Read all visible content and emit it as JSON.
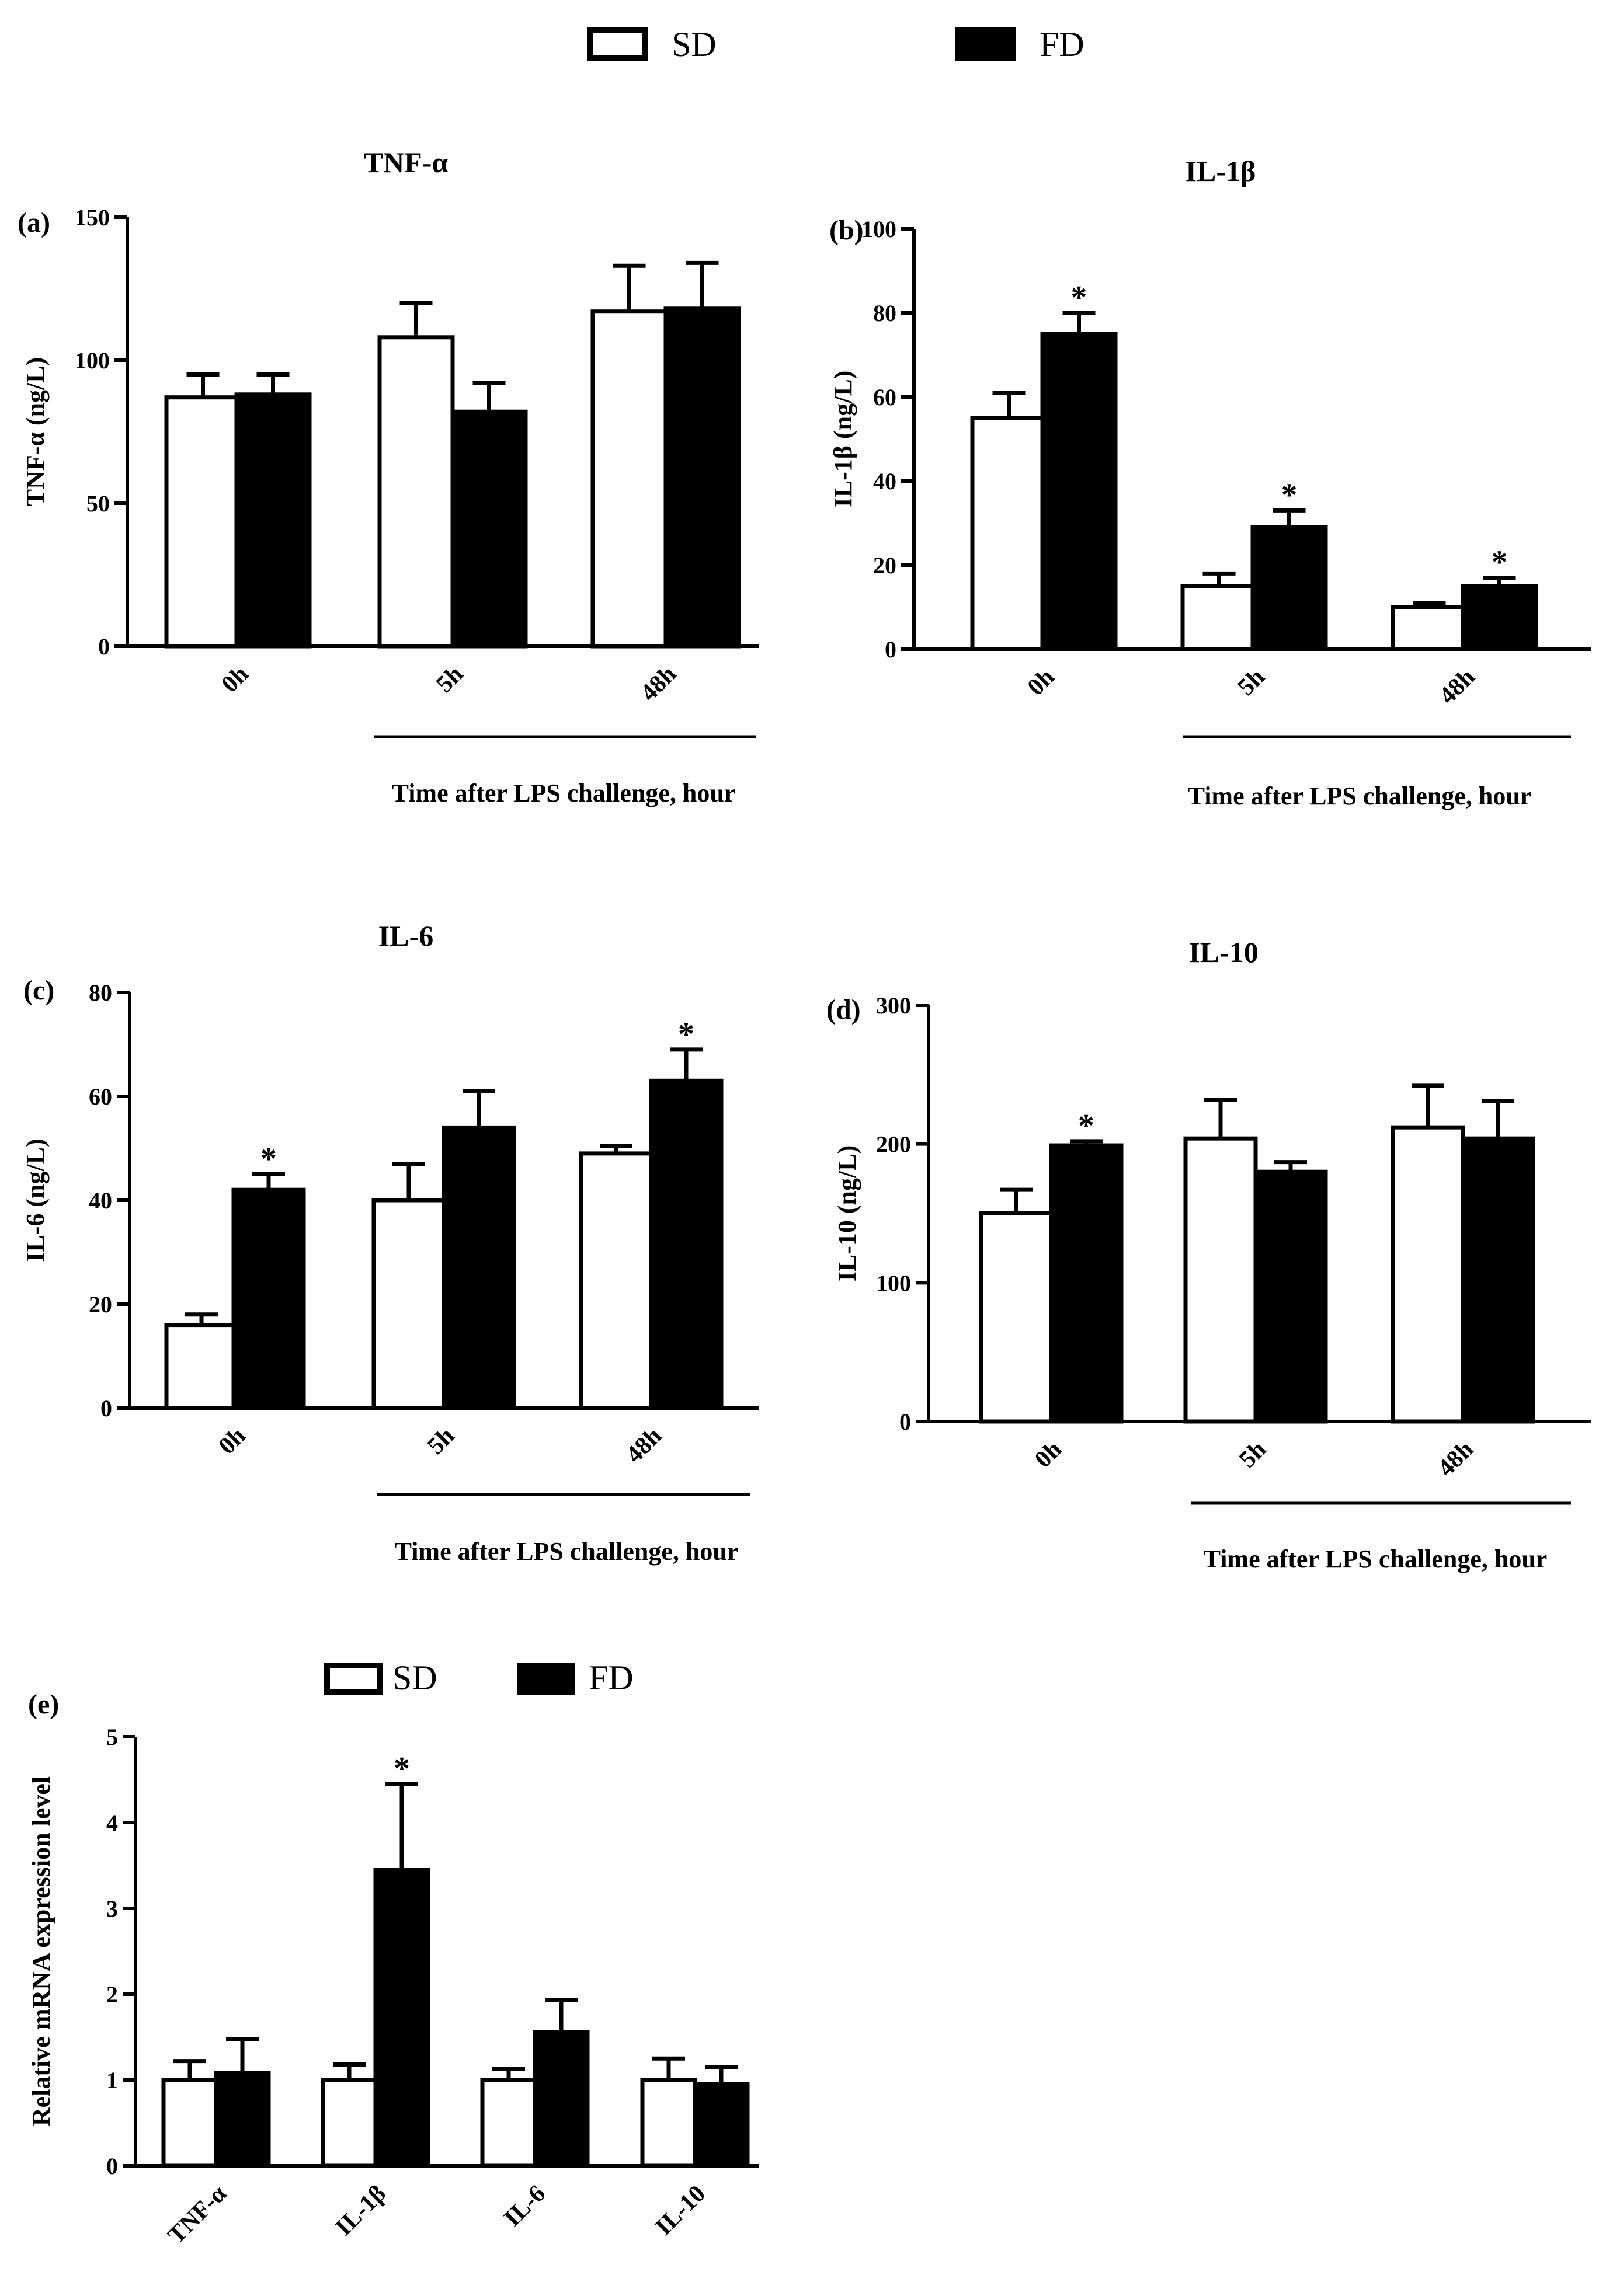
{
  "legend_top": {
    "sd": "SD",
    "fd": "FD"
  },
  "legend_e": {
    "sd": "SD",
    "fd": "FD"
  },
  "colors": {
    "sd": "#ffffff",
    "fd": "#000000",
    "axis": "#000000"
  },
  "chart_data": [
    {
      "id": "a",
      "type": "bar",
      "panel_label": "(a)",
      "title": "TNF-α",
      "ylabel": "TNF-α (ng/L)",
      "xlabel": "Time after LPS challenge, hour",
      "categories": [
        "0h",
        "5h",
        "48h"
      ],
      "ylim": [
        0,
        150
      ],
      "yticks": [
        0,
        50,
        100,
        150
      ],
      "series": [
        {
          "name": "SD",
          "values": [
            87,
            108,
            117
          ],
          "errors": [
            8,
            12,
            16
          ],
          "sig": [
            false,
            false,
            false
          ]
        },
        {
          "name": "FD",
          "values": [
            88,
            82,
            118
          ],
          "errors": [
            7,
            10,
            16
          ],
          "sig": [
            false,
            false,
            false
          ]
        }
      ]
    },
    {
      "id": "b",
      "type": "bar",
      "panel_label": "(b)",
      "title": "IL-1β",
      "ylabel": "IL-1β (ng/L)",
      "xlabel": "Time after LPS challenge, hour",
      "categories": [
        "0h",
        "5h",
        "48h"
      ],
      "ylim": [
        0,
        100
      ],
      "yticks": [
        0,
        20,
        40,
        60,
        80,
        100
      ],
      "series": [
        {
          "name": "SD",
          "values": [
            55,
            15,
            10
          ],
          "errors": [
            6,
            3,
            1
          ],
          "sig": [
            false,
            false,
            false
          ]
        },
        {
          "name": "FD",
          "values": [
            75,
            29,
            15
          ],
          "errors": [
            5,
            4,
            2
          ],
          "sig": [
            true,
            true,
            true
          ]
        }
      ]
    },
    {
      "id": "c",
      "type": "bar",
      "panel_label": "(c)",
      "title": "IL-6",
      "ylabel": "IL-6 (ng/L)",
      "xlabel": "Time after LPS challenge, hour",
      "categories": [
        "0h",
        "5h",
        "48h"
      ],
      "ylim": [
        0,
        80
      ],
      "yticks": [
        0,
        20,
        40,
        60,
        80
      ],
      "series": [
        {
          "name": "SD",
          "values": [
            16,
            40,
            49
          ],
          "errors": [
            2,
            7,
            1.5
          ],
          "sig": [
            false,
            false,
            false
          ]
        },
        {
          "name": "FD",
          "values": [
            42,
            54,
            63
          ],
          "errors": [
            3,
            7,
            6
          ],
          "sig": [
            true,
            false,
            true
          ]
        }
      ]
    },
    {
      "id": "d",
      "type": "bar",
      "panel_label": "(d)",
      "title": "IL-10",
      "ylabel": "IL-10 (ng/L)",
      "xlabel": "Time after LPS challenge, hour",
      "categories": [
        "0h",
        "5h",
        "48h"
      ],
      "ylim": [
        0,
        300
      ],
      "yticks": [
        0,
        100,
        200,
        300
      ],
      "series": [
        {
          "name": "SD",
          "values": [
            150,
            204,
            212
          ],
          "errors": [
            17,
            28,
            30
          ],
          "sig": [
            false,
            false,
            false
          ]
        },
        {
          "name": "FD",
          "values": [
            199,
            180,
            204
          ],
          "errors": [
            3,
            7,
            27
          ],
          "sig": [
            true,
            false,
            false
          ]
        }
      ]
    },
    {
      "id": "e",
      "type": "bar",
      "panel_label": "(e)",
      "title": "",
      "ylabel": "Relative mRNA expression level",
      "xlabel": "",
      "categories": [
        "TNF-α",
        "IL-1β",
        "IL-6",
        "IL-10"
      ],
      "ylim": [
        0,
        5
      ],
      "yticks": [
        0,
        1,
        2,
        3,
        4,
        5
      ],
      "series": [
        {
          "name": "SD",
          "values": [
            1.0,
            1.0,
            1.0,
            1.0
          ],
          "errors": [
            0.22,
            0.18,
            0.13,
            0.25
          ],
          "sig": [
            false,
            false,
            false,
            false
          ]
        },
        {
          "name": "FD",
          "values": [
            1.08,
            3.45,
            1.56,
            0.95
          ],
          "errors": [
            0.4,
            1.0,
            0.37,
            0.2
          ],
          "sig": [
            false,
            true,
            false,
            false
          ]
        }
      ]
    }
  ]
}
